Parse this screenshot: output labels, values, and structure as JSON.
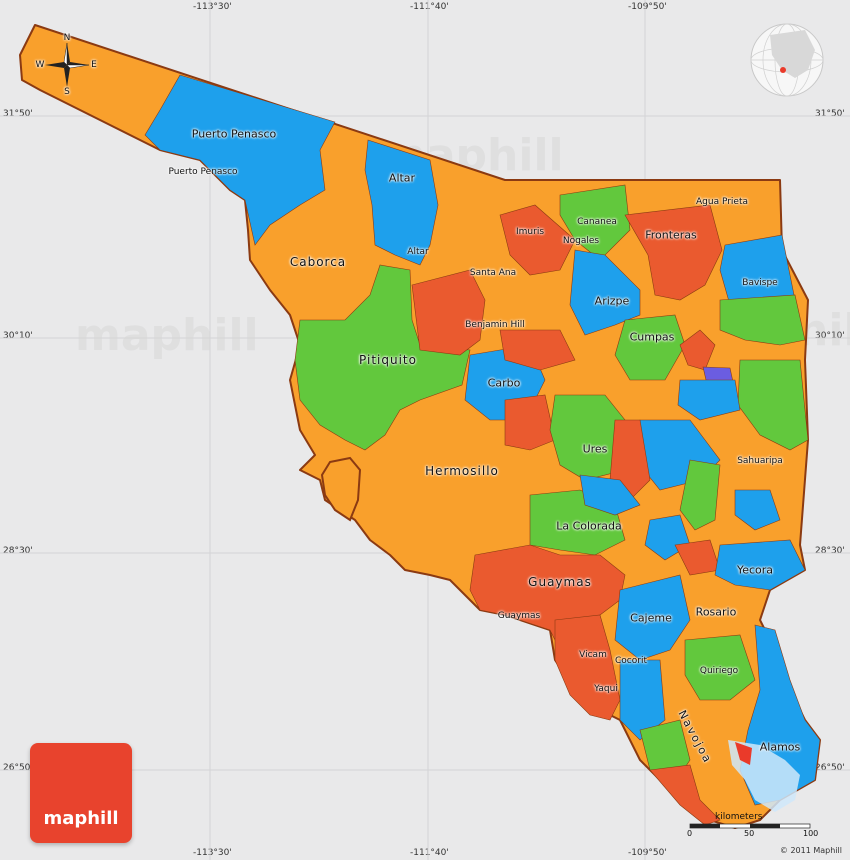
{
  "map": {
    "longitude_labels": [
      "-113°30'",
      "-111°40'",
      "-109°50'"
    ],
    "latitude_labels": [
      "31°50'",
      "30°10'",
      "28°30'",
      "26°50'"
    ],
    "compass": {
      "n": "N",
      "s": "S",
      "e": "E",
      "w": "W"
    },
    "watermark_text": "maphill",
    "logo_text": "maphill",
    "copyright": "© 2011 Maphill",
    "scale": {
      "title": "kilometers",
      "start": "0",
      "mid": "50",
      "end": "100"
    },
    "colors": {
      "orange": "#f9a02c",
      "blue": "#1ea0ec",
      "green": "#62c83d",
      "red": "#ea5a2f",
      "purple": "#6b5de1",
      "border": "#8b3a12",
      "water": "#e9e9ea"
    },
    "labels": {
      "puerto_penasco_region": "Puerto Penasco",
      "puerto_penasco_city": "Puerto Penasco",
      "altar_region": "Altar",
      "altar_city": "Altar",
      "caborca": "Caborca",
      "imuris": "Imuris",
      "cananea": "Cananea",
      "nogales": "Nogales",
      "fronteras": "Fronteras",
      "agua_prieta": "Agua Prieta",
      "santa_ana": "Santa Ana",
      "arizpe": "Arizpe",
      "bavispe": "Bavispe",
      "benjamin_hill": "Benjamin Hill",
      "cumpas": "Cumpas",
      "pitiquito": "Pitiquito",
      "carbo": "Carbo",
      "ures": "Ures",
      "sahuaripa": "Sahuaripa",
      "hermosillo": "Hermosillo",
      "la_colorada": "La Colorada",
      "guaymas_region": "Guaymas",
      "guaymas_city": "Guaymas",
      "yecora": "Yecora",
      "rosario": "Rosario",
      "cajeme": "Cajeme",
      "vicam": "Vicam",
      "cocorit": "Cocorit",
      "quiriego": "Quiriego",
      "yaqui": "Yaqui",
      "navojoa": "Navojoa",
      "alamos": "Alamos"
    }
  }
}
